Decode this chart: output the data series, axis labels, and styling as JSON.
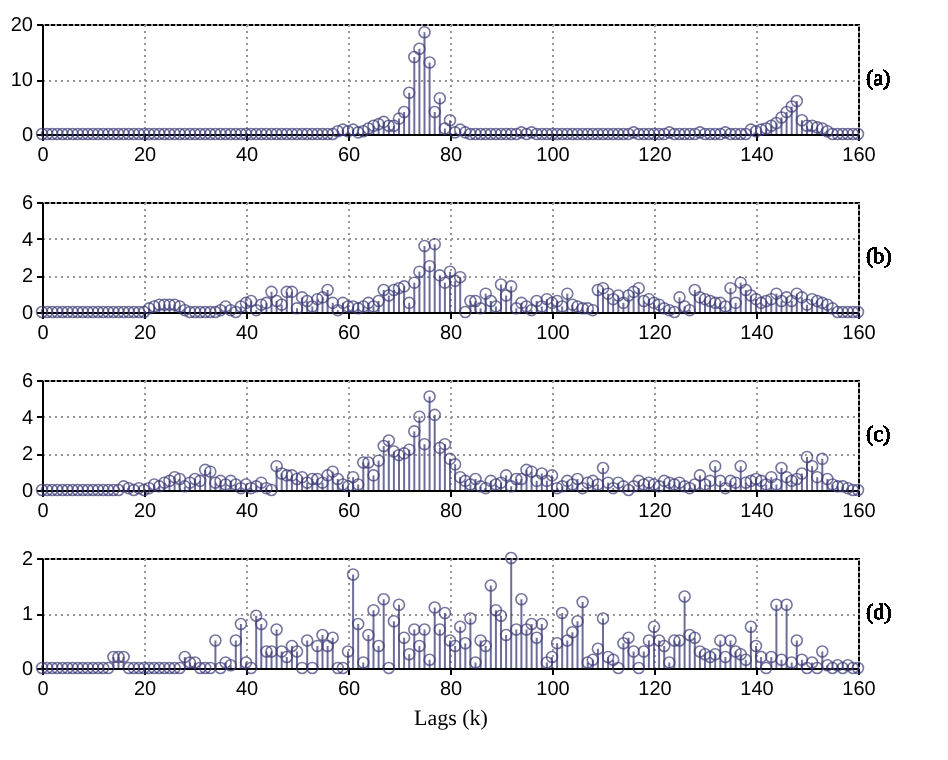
{
  "chart_data": [
    {
      "type": "lollipop",
      "annotations": [
        "(a)"
      ],
      "color": "#3c3c78",
      "marker": "circle",
      "grid": true,
      "xlim": [
        0,
        160
      ],
      "xticks": [
        0,
        20,
        40,
        60,
        80,
        100,
        120,
        140,
        160
      ],
      "ylim": [
        0,
        20
      ],
      "yticks": [
        0,
        10,
        20
      ],
      "x": [
        0,
        1,
        2,
        3,
        4,
        5,
        6,
        7,
        8,
        9,
        10,
        11,
        12,
        13,
        14,
        15,
        16,
        17,
        18,
        19,
        20,
        21,
        22,
        23,
        24,
        25,
        26,
        27,
        28,
        29,
        30,
        31,
        32,
        33,
        34,
        35,
        36,
        37,
        38,
        39,
        40,
        41,
        42,
        43,
        44,
        45,
        46,
        47,
        48,
        49,
        50,
        51,
        52,
        53,
        54,
        55,
        56,
        57,
        58,
        59,
        60,
        61,
        62,
        63,
        64,
        65,
        66,
        67,
        68,
        69,
        70,
        71,
        72,
        73,
        74,
        75,
        76,
        77,
        78,
        79,
        80,
        81,
        82,
        83,
        84,
        85,
        86,
        87,
        88,
        89,
        90,
        91,
        92,
        93,
        94,
        95,
        96,
        97,
        98,
        99,
        100,
        101,
        102,
        103,
        104,
        105,
        106,
        107,
        108,
        109,
        110,
        111,
        112,
        113,
        114,
        115,
        116,
        117,
        118,
        119,
        120,
        121,
        122,
        123,
        124,
        125,
        126,
        127,
        128,
        129,
        130,
        131,
        132,
        133,
        134,
        135,
        136,
        137,
        138,
        139,
        140,
        141,
        142,
        143,
        144,
        145,
        146,
        147,
        148,
        149,
        150,
        151,
        152,
        153,
        154,
        155,
        156,
        157,
        158,
        159,
        160
      ],
      "values": [
        0,
        0,
        0,
        0,
        0,
        0,
        0,
        0,
        0,
        0,
        0,
        0,
        0,
        0,
        0,
        0,
        0,
        0,
        0,
        0,
        0,
        0,
        0,
        0,
        0,
        0,
        0,
        0,
        0,
        0,
        0,
        0,
        0,
        0,
        0,
        0,
        0,
        0,
        0,
        0,
        0,
        0,
        0,
        0,
        0,
        0,
        0,
        0,
        0,
        0,
        0,
        0,
        0,
        0,
        0,
        0,
        0,
        0,
        0.5,
        0.8,
        0.5,
        0.8,
        0.3,
        0.5,
        1,
        1.5,
        1.8,
        2.2,
        1.5,
        1.5,
        2.8,
        4,
        7.5,
        14,
        15.5,
        18.5,
        13,
        4,
        6.5,
        1,
        2.5,
        0.3,
        0.8,
        0.3,
        0,
        0,
        0,
        0,
        0,
        0,
        0,
        0,
        0,
        0,
        0.3,
        0,
        0.3,
        0,
        0,
        0,
        0,
        0,
        0,
        0,
        0,
        0,
        0,
        0,
        0,
        0,
        0,
        0,
        0,
        0,
        0,
        0,
        0.3,
        0,
        0,
        0,
        0,
        0,
        0,
        0.3,
        0,
        0,
        0,
        0,
        0,
        0.3,
        0,
        0,
        0,
        0,
        0.3,
        0,
        0,
        0,
        0,
        0.8,
        0.5,
        0.8,
        1,
        1.5,
        2,
        3,
        4,
        5,
        6,
        2.5,
        1.5,
        1.5,
        1.2,
        1,
        0.5,
        0,
        0,
        0,
        0,
        0,
        0
      ]
    },
    {
      "type": "lollipop",
      "annotations": [
        "(b)"
      ],
      "color": "#3c3c78",
      "marker": "circle",
      "grid": true,
      "xlim": [
        0,
        160
      ],
      "xticks": [
        0,
        20,
        40,
        60,
        80,
        100,
        120,
        140,
        160
      ],
      "ylim": [
        0,
        6
      ],
      "yticks": [
        0,
        2,
        4,
        6
      ],
      "x": [
        0,
        1,
        2,
        3,
        4,
        5,
        6,
        7,
        8,
        9,
        10,
        11,
        12,
        13,
        14,
        15,
        16,
        17,
        18,
        19,
        20,
        21,
        22,
        23,
        24,
        25,
        26,
        27,
        28,
        29,
        30,
        31,
        32,
        33,
        34,
        35,
        36,
        37,
        38,
        39,
        40,
        41,
        42,
        43,
        44,
        45,
        46,
        47,
        48,
        49,
        50,
        51,
        52,
        53,
        54,
        55,
        56,
        57,
        58,
        59,
        60,
        61,
        62,
        63,
        64,
        65,
        66,
        67,
        68,
        69,
        70,
        71,
        72,
        73,
        74,
        75,
        76,
        77,
        78,
        79,
        80,
        81,
        82,
        83,
        84,
        85,
        86,
        87,
        88,
        89,
        90,
        91,
        92,
        93,
        94,
        95,
        96,
        97,
        98,
        99,
        100,
        101,
        102,
        103,
        104,
        105,
        106,
        107,
        108,
        109,
        110,
        111,
        112,
        113,
        114,
        115,
        116,
        117,
        118,
        119,
        120,
        121,
        122,
        123,
        124,
        125,
        126,
        127,
        128,
        129,
        130,
        131,
        132,
        133,
        134,
        135,
        136,
        137,
        138,
        139,
        140,
        141,
        142,
        143,
        144,
        145,
        146,
        147,
        148,
        149,
        150,
        151,
        152,
        153,
        154,
        155,
        156,
        157,
        158,
        159,
        160
      ],
      "values": [
        0,
        0,
        0,
        0,
        0,
        0,
        0,
        0,
        0,
        0,
        0,
        0,
        0,
        0,
        0,
        0,
        0,
        0,
        0,
        0,
        0,
        0.2,
        0.3,
        0.4,
        0.4,
        0.4,
        0.4,
        0.3,
        0.1,
        0,
        0,
        0,
        0,
        0,
        0,
        0.1,
        0.3,
        0.1,
        0,
        0.3,
        0.5,
        0.6,
        0.1,
        0.4,
        0.5,
        1.1,
        0.6,
        0.4,
        1.1,
        1.1,
        0.2,
        0.8,
        0.6,
        0.3,
        0.7,
        0.8,
        1.2,
        0.5,
        0.1,
        0.5,
        0.3,
        0.3,
        0.2,
        0.3,
        0.5,
        0.3,
        0.6,
        1.2,
        0.9,
        1.2,
        1.3,
        1.4,
        0.5,
        1.6,
        2.2,
        3.6,
        2.5,
        3.7,
        2,
        1.6,
        2.2,
        1.7,
        1.9,
        0,
        0.6,
        0.6,
        0.2,
        1,
        0.6,
        0.3,
        1.5,
        0.9,
        1.4,
        0.2,
        0.5,
        0.3,
        0.1,
        0.6,
        0.3,
        0.7,
        0.5,
        0.6,
        0.3,
        1,
        0.4,
        0.3,
        0.2,
        0.2,
        0.1,
        1.2,
        1.3,
        1,
        0.7,
        0.9,
        0.5,
        0.9,
        1.1,
        1.3,
        0.6,
        0.7,
        0.5,
        0.4,
        0.2,
        0.1,
        0,
        0.8,
        0.3,
        0.1,
        1.2,
        0.8,
        0.7,
        0.6,
        0.5,
        0.5,
        0.3,
        1.3,
        0.5,
        1.6,
        1.2,
        0.9,
        0.7,
        0.5,
        0.6,
        0.7,
        1,
        0.6,
        0.8,
        0.6,
        1,
        0.8,
        0.4,
        0.7,
        0.6,
        0.5,
        0.4,
        0.2,
        0,
        0,
        0,
        0,
        0
      ]
    },
    {
      "type": "lollipop",
      "annotations": [
        "(c)"
      ],
      "color": "#3c3c78",
      "marker": "circle",
      "grid": true,
      "xlim": [
        0,
        160
      ],
      "xticks": [
        0,
        20,
        40,
        60,
        80,
        100,
        120,
        140,
        160
      ],
      "ylim": [
        0,
        6
      ],
      "yticks": [
        0,
        2,
        4,
        6
      ],
      "x": [
        0,
        1,
        2,
        3,
        4,
        5,
        6,
        7,
        8,
        9,
        10,
        11,
        12,
        13,
        14,
        15,
        16,
        17,
        18,
        19,
        20,
        21,
        22,
        23,
        24,
        25,
        26,
        27,
        28,
        29,
        30,
        31,
        32,
        33,
        34,
        35,
        36,
        37,
        38,
        39,
        40,
        41,
        42,
        43,
        44,
        45,
        46,
        47,
        48,
        49,
        50,
        51,
        52,
        53,
        54,
        55,
        56,
        57,
        58,
        59,
        60,
        61,
        62,
        63,
        64,
        65,
        66,
        67,
        68,
        69,
        70,
        71,
        72,
        73,
        74,
        75,
        76,
        77,
        78,
        79,
        80,
        81,
        82,
        83,
        84,
        85,
        86,
        87,
        88,
        89,
        90,
        91,
        92,
        93,
        94,
        95,
        96,
        97,
        98,
        99,
        100,
        101,
        102,
        103,
        104,
        105,
        106,
        107,
        108,
        109,
        110,
        111,
        112,
        113,
        114,
        115,
        116,
        117,
        118,
        119,
        120,
        121,
        122,
        123,
        124,
        125,
        126,
        127,
        128,
        129,
        130,
        131,
        132,
        133,
        134,
        135,
        136,
        137,
        138,
        139,
        140,
        141,
        142,
        143,
        144,
        145,
        146,
        147,
        148,
        149,
        150,
        151,
        152,
        153,
        154,
        155,
        156,
        157,
        158,
        159,
        160
      ],
      "values": [
        0,
        0,
        0,
        0,
        0,
        0,
        0,
        0,
        0,
        0,
        0,
        0,
        0,
        0,
        0,
        0,
        0.2,
        0.1,
        0,
        0.1,
        0,
        0.1,
        0.3,
        0.2,
        0.4,
        0.5,
        0.7,
        0.6,
        0.2,
        0.4,
        0.6,
        0.5,
        1.1,
        1,
        0.4,
        0.5,
        0.3,
        0.5,
        0.3,
        0.1,
        0.3,
        0.1,
        0.2,
        0.4,
        0.1,
        0,
        1.3,
        0.9,
        0.8,
        0.8,
        0.6,
        0.7,
        0.4,
        0.6,
        0.6,
        0.4,
        0.8,
        1,
        0.6,
        0.3,
        0.2,
        0.7,
        0.3,
        1.5,
        1.5,
        0.8,
        1.6,
        2.4,
        2.7,
        2.1,
        1.9,
        2,
        2.2,
        3.2,
        4,
        2.5,
        5.1,
        4.1,
        2.3,
        2.5,
        1.7,
        1.4,
        0.7,
        0.5,
        0.3,
        0.6,
        0.2,
        0.1,
        0.5,
        0.3,
        0.4,
        0.8,
        0.2,
        0.6,
        0.6,
        1.1,
        1,
        0.5,
        0.9,
        0.5,
        0.8,
        0.1,
        0.2,
        0.5,
        0.3,
        0.6,
        0.1,
        0.4,
        0.5,
        0.3,
        1.2,
        0.4,
        0.1,
        0.4,
        0.2,
        0,
        0.2,
        0.5,
        0.3,
        0.4,
        0.3,
        0.2,
        0.5,
        0.4,
        0.3,
        0.4,
        0.2,
        0.1,
        0.3,
        0.8,
        0.3,
        0.5,
        1.3,
        0.5,
        0.1,
        0.5,
        0.4,
        1.3,
        0.4,
        0.5,
        0.6,
        0.5,
        0.3,
        0.7,
        0.3,
        1.2,
        0.7,
        0.5,
        0.6,
        0.9,
        1.8,
        1.3,
        0.7,
        1.7,
        0.6,
        0.3,
        0.2,
        0.2,
        0.1,
        0,
        0
      ]
    },
    {
      "type": "lollipop",
      "annotations": [
        "(d)"
      ],
      "xlabel": "Lags (k)",
      "color": "#3c3c78",
      "marker": "circle",
      "grid": true,
      "xlim": [
        0,
        160
      ],
      "xticks": [
        0,
        20,
        40,
        60,
        80,
        100,
        120,
        140,
        160
      ],
      "ylim": [
        0,
        2
      ],
      "yticks": [
        0,
        1,
        2
      ],
      "x": [
        0,
        1,
        2,
        3,
        4,
        5,
        6,
        7,
        8,
        9,
        10,
        11,
        12,
        13,
        14,
        15,
        16,
        17,
        18,
        19,
        20,
        21,
        22,
        23,
        24,
        25,
        26,
        27,
        28,
        29,
        30,
        31,
        32,
        33,
        34,
        35,
        36,
        37,
        38,
        39,
        40,
        41,
        42,
        43,
        44,
        45,
        46,
        47,
        48,
        49,
        50,
        51,
        52,
        53,
        54,
        55,
        56,
        57,
        58,
        59,
        60,
        61,
        62,
        63,
        64,
        65,
        66,
        67,
        68,
        69,
        70,
        71,
        72,
        73,
        74,
        75,
        76,
        77,
        78,
        79,
        80,
        81,
        82,
        83,
        84,
        85,
        86,
        87,
        88,
        89,
        90,
        91,
        92,
        93,
        94,
        95,
        96,
        97,
        98,
        99,
        100,
        101,
        102,
        103,
        104,
        105,
        106,
        107,
        108,
        109,
        110,
        111,
        112,
        113,
        114,
        115,
        116,
        117,
        118,
        119,
        120,
        121,
        122,
        123,
        124,
        125,
        126,
        127,
        128,
        129,
        130,
        131,
        132,
        133,
        134,
        135,
        136,
        137,
        138,
        139,
        140,
        141,
        142,
        143,
        144,
        145,
        146,
        147,
        148,
        149,
        150,
        151,
        152,
        153,
        154,
        155,
        156,
        157,
        158,
        159,
        160
      ],
      "values": [
        0,
        0,
        0,
        0,
        0,
        0,
        0,
        0,
        0,
        0,
        0,
        0,
        0,
        0,
        0.2,
        0.2,
        0.2,
        0,
        0,
        0,
        0,
        0,
        0,
        0,
        0,
        0,
        0,
        0,
        0.2,
        0.1,
        0.1,
        0,
        0,
        0,
        0.5,
        0,
        0.1,
        0.05,
        0.5,
        0.8,
        0.1,
        0,
        0.95,
        0.8,
        0.3,
        0.3,
        0.7,
        0.3,
        0.2,
        0.4,
        0.3,
        0,
        0.5,
        0,
        0.4,
        0.6,
        0.4,
        0.55,
        0,
        0,
        0.3,
        1.7,
        0.8,
        0.1,
        0.6,
        1.05,
        0.4,
        1.25,
        0,
        0.85,
        1.15,
        0.55,
        0.25,
        0.7,
        0.4,
        0.7,
        0.15,
        1.1,
        0.7,
        1,
        0.5,
        0.4,
        0.75,
        0.45,
        0.9,
        0.1,
        0.5,
        0.4,
        1.5,
        1.05,
        0.95,
        0.6,
        2,
        0.7,
        1.25,
        0.7,
        0.8,
        0.55,
        0.8,
        0.1,
        0.2,
        0.45,
        1,
        0.5,
        0.65,
        0.85,
        1.2,
        0.1,
        0.15,
        0.35,
        0.9,
        0.2,
        0.15,
        0,
        0.45,
        0.55,
        0.3,
        0,
        0.3,
        0.5,
        0.75,
        0.5,
        0.4,
        0.1,
        0.5,
        0.5,
        1.3,
        0.6,
        0.55,
        0.3,
        0.25,
        0.2,
        0.25,
        0.5,
        0.2,
        0.5,
        0.3,
        0.25,
        0.15,
        0.75,
        0.4,
        0.2,
        0,
        0.2,
        1.15,
        0.15,
        1.15,
        0.1,
        0.5,
        0.15,
        0,
        0.1,
        0,
        0.3,
        0.05,
        0,
        0.05,
        0,
        0.05,
        0,
        0
      ]
    }
  ]
}
